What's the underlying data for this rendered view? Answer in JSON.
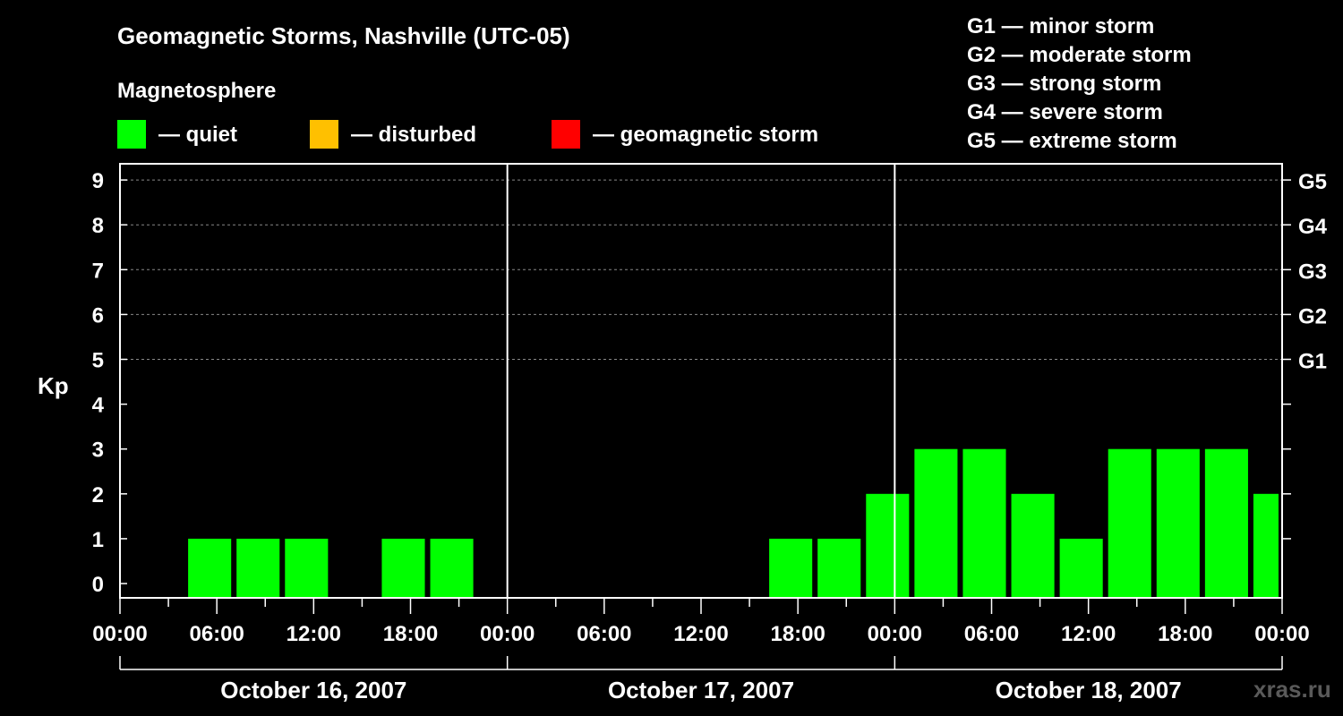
{
  "chart_data": {
    "type": "bar",
    "title": "Geomagnetic Storms, Nashville (UTC-05)",
    "legend_title": "Magnetosphere",
    "legend": [
      {
        "label": "— quiet",
        "color": "#00ff00"
      },
      {
        "label": "— disturbed",
        "color": "#ffc000"
      },
      {
        "label": "— geomagnetic storm",
        "color": "#ff0000"
      }
    ],
    "storm_scale": [
      "G1 — minor storm",
      "G2 — moderate storm",
      "G3 — strong storm",
      "G4 — severe storm",
      "G5 — extreme storm"
    ],
    "ylabel": "Kp",
    "ylim": [
      0,
      9
    ],
    "yticks": [
      "0",
      "1",
      "2",
      "3",
      "4",
      "5",
      "6",
      "7",
      "8",
      "9"
    ],
    "right_ticks": [
      {
        "kp": 5,
        "label": "G1"
      },
      {
        "kp": 6,
        "label": "G2"
      },
      {
        "kp": 7,
        "label": "G3"
      },
      {
        "kp": 8,
        "label": "G4"
      },
      {
        "kp": 9,
        "label": "G5"
      }
    ],
    "xlim_hours": [
      0,
      72
    ],
    "xtick_labels": [
      "00:00",
      "06:00",
      "12:00",
      "18:00",
      "00:00",
      "06:00",
      "12:00",
      "18:00",
      "00:00",
      "06:00",
      "12:00",
      "18:00",
      "00:00"
    ],
    "days": [
      "October 16, 2007",
      "October 17, 2007",
      "October 18, 2007"
    ],
    "bin_hours": 3,
    "bars": [
      {
        "start_hour": 4,
        "kp": 1
      },
      {
        "start_hour": 7,
        "kp": 1
      },
      {
        "start_hour": 10,
        "kp": 1
      },
      {
        "start_hour": 16,
        "kp": 1
      },
      {
        "start_hour": 19,
        "kp": 1
      },
      {
        "start_hour": 40,
        "kp": 1
      },
      {
        "start_hour": 43,
        "kp": 1
      },
      {
        "start_hour": 46,
        "kp": 2
      },
      {
        "start_hour": 49,
        "kp": 3
      },
      {
        "start_hour": 52,
        "kp": 3
      },
      {
        "start_hour": 55,
        "kp": 2
      },
      {
        "start_hour": 58,
        "kp": 1
      },
      {
        "start_hour": 61,
        "kp": 3
      },
      {
        "start_hour": 64,
        "kp": 3
      },
      {
        "start_hour": 67,
        "kp": 3
      },
      {
        "start_hour": 70,
        "kp": 2
      }
    ],
    "grid": "dashed at Kp 5-9"
  },
  "watermark": "xras.ru"
}
